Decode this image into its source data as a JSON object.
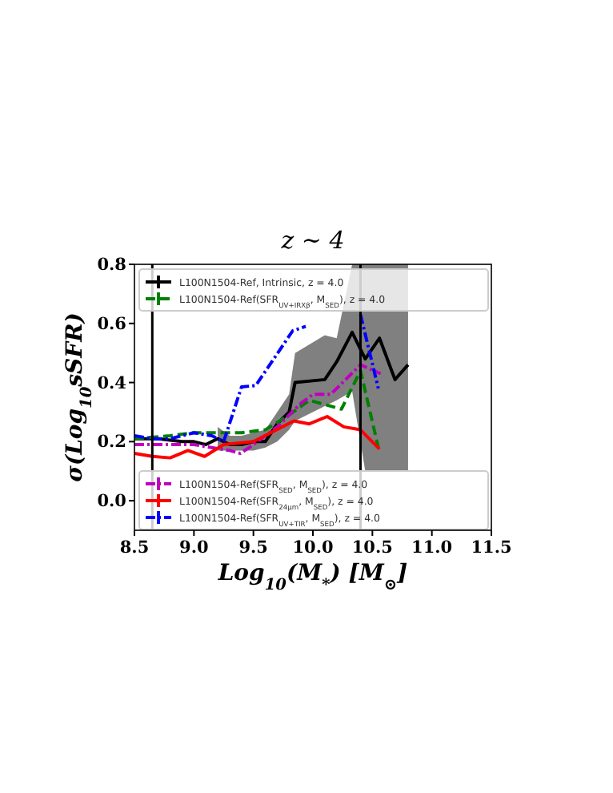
{
  "chart_data": {
    "type": "line",
    "title": "z ∼ 4",
    "xlabel": "Log$_{10}$(M$_{*}$) [M$_{⊙}$]",
    "ylabel": "σ(Log$_{10}$sSFR)",
    "xlim": [
      8.5,
      11.5
    ],
    "xticks": [
      8.5,
      {
        "value": 9,
        "label": "9.0"
      },
      9.5,
      {
        "value": 10,
        "label": "10.0"
      },
      10.5,
      {
        "value": 11,
        "label": "11.0"
      },
      11.5
    ],
    "ylim": [
      -0.1,
      0.8
    ],
    "yticks": [
      {
        "value": 0,
        "label": "0.0"
      },
      0.2,
      0.4,
      0.6,
      0.8
    ],
    "grid": false,
    "legend": "left",
    "marker": "none",
    "ref_lines": [
      {
        "axis": "x",
        "value": 8.65,
        "color": "#000000"
      },
      {
        "axis": "x",
        "value": 10.4,
        "color": "#000000"
      }
    ],
    "series": [
      {
        "name": "L100N1504-Ref, Intrinsic, z = 4.0",
        "color": "#000000",
        "line_style": "solid",
        "x": [
          8.5,
          8.6,
          8.7,
          8.8,
          8.9,
          9.0,
          9.1,
          9.2,
          9.3,
          9.4,
          9.5,
          9.6,
          9.7,
          9.8,
          9.85,
          10.1,
          10.2,
          10.33,
          10.44,
          10.56,
          10.69,
          10.8
        ],
        "values": [
          0.21,
          0.21,
          0.21,
          0.205,
          0.2,
          0.2,
          0.19,
          0.21,
          0.19,
          0.19,
          0.2,
          0.2,
          0.26,
          0.3,
          0.4,
          0.41,
          0.47,
          0.57,
          0.48,
          0.55,
          0.41,
          0.46
        ],
        "lower": [
          null,
          null,
          null,
          null,
          null,
          null,
          null,
          0.17,
          0.17,
          0.17,
          0.17,
          0.18,
          0.2,
          0.24,
          0.27,
          0.32,
          0.34,
          0.37,
          0.1,
          0.1,
          0.1,
          0.1
        ],
        "upper": [
          null,
          null,
          null,
          null,
          null,
          null,
          null,
          0.25,
          0.22,
          0.22,
          0.23,
          0.24,
          0.3,
          0.36,
          0.5,
          0.56,
          0.55,
          0.8,
          0.8,
          0.8,
          0.8,
          0.8
        ]
      },
      {
        "name": "L100N1504-Ref(SFR$_{UV+IRXβ}$, M$_{SED}$), z = 4.0",
        "color": "#008000",
        "line_style": "dashed",
        "x": [
          8.5,
          8.8,
          9.0,
          9.2,
          9.4,
          9.6,
          9.8,
          9.97,
          10.24,
          10.4,
          10.55
        ],
        "values": [
          0.21,
          0.22,
          0.23,
          0.23,
          0.23,
          0.24,
          0.29,
          0.34,
          0.31,
          0.44,
          0.18
        ]
      },
      {
        "name": "L100N1504-Ref(SFR$_{SED}$, M$_{SED}$), z = 4.0",
        "color": "#bf00bf",
        "line_style": "dashdot",
        "x": [
          8.5,
          9.0,
          9.3,
          9.39,
          9.5,
          9.7,
          9.9,
          10.0,
          10.15,
          10.4,
          10.57
        ],
        "values": [
          0.19,
          0.19,
          0.17,
          0.16,
          0.19,
          0.25,
          0.33,
          0.36,
          0.36,
          0.46,
          0.43
        ]
      },
      {
        "name": "L100N1504-Ref(SFR$_{24μm}$, M$_{SED}$), z = 4.0",
        "color": "#ff0000",
        "line_style": "solid",
        "x": [
          8.5,
          8.65,
          8.8,
          8.95,
          9.09,
          9.25,
          9.5,
          9.84,
          9.97,
          10.12,
          10.26,
          10.4,
          10.56
        ],
        "values": [
          0.16,
          0.15,
          0.145,
          0.17,
          0.15,
          0.19,
          0.2,
          0.27,
          0.26,
          0.285,
          0.25,
          0.24,
          0.175
        ]
      },
      {
        "name": "L100N1504-Ref(SFR$_{UV+TIR}$, M$_{SED}$), z = 4.0",
        "color": "#0000ff",
        "line_style": "dashdot",
        "x": [
          8.5,
          8.65,
          8.8,
          9.0,
          9.15,
          9.25,
          9.4,
          9.52,
          9.83,
          9.94,
          10.1,
          10.2,
          10.3,
          10.4,
          10.55
        ],
        "values": [
          0.22,
          0.21,
          0.21,
          0.23,
          0.22,
          0.2,
          0.385,
          0.39,
          0.575,
          0.59,
          null,
          null,
          null,
          0.63,
          0.38
        ]
      }
    ]
  }
}
